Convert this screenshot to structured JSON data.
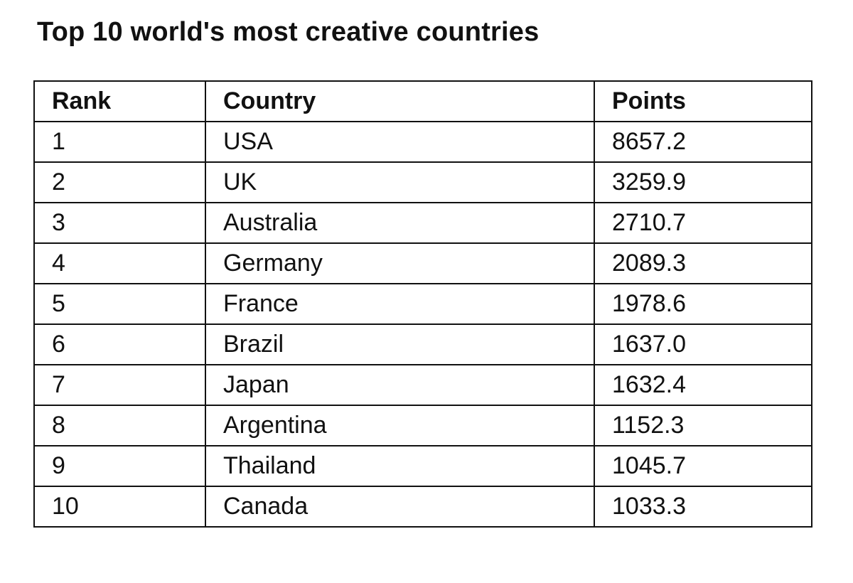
{
  "chart_data": {
    "type": "table",
    "title": "Top 10 world's most creative countries",
    "columns": [
      "Rank",
      "Country",
      "Points"
    ],
    "rows": [
      [
        "1",
        "USA",
        "8657.2"
      ],
      [
        "2",
        "UK",
        "3259.9"
      ],
      [
        "3",
        "Australia",
        "2710.7"
      ],
      [
        "4",
        "Germany",
        "2089.3"
      ],
      [
        "5",
        "France",
        "1978.6"
      ],
      [
        "6",
        "Brazil",
        "1637.0"
      ],
      [
        "7",
        "Japan",
        "1632.4"
      ],
      [
        "8",
        "Argentina",
        "1152.3"
      ],
      [
        "9",
        "Thailand",
        "1045.7"
      ],
      [
        "10",
        "Canada",
        "1033.3"
      ]
    ]
  }
}
